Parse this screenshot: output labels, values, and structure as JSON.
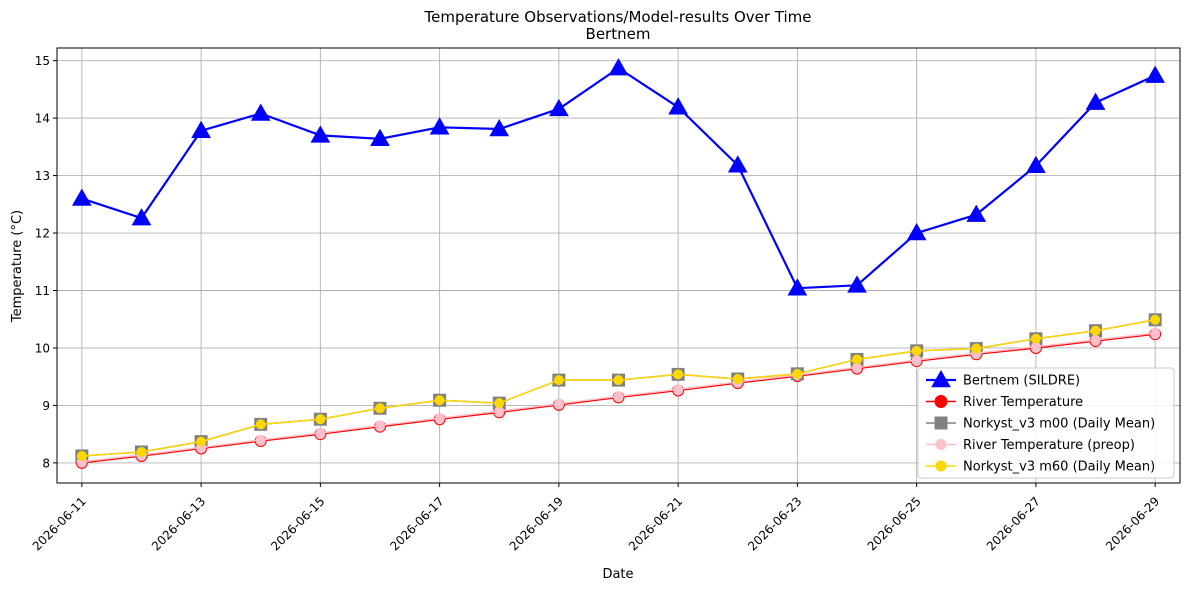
{
  "chart_data": {
    "type": "line",
    "title": "Temperature Observations/Model-results Over Time",
    "subtitle": "Bertnem",
    "xlabel": "Date",
    "ylabel": "Temperature (°C)",
    "ylim": [
      7.65,
      15.22
    ],
    "yticks": [
      8,
      9,
      10,
      11,
      12,
      13,
      14,
      15
    ],
    "xlim": [
      "2026-06-10T14:00",
      "2026-06-29T10:00"
    ],
    "xticks": [
      "2026-06-11",
      "2026-06-13",
      "2026-06-15",
      "2026-06-17",
      "2026-06-19",
      "2026-06-21",
      "2026-06-23",
      "2026-06-25",
      "2026-06-27",
      "2026-06-29"
    ],
    "grid": true,
    "legend_position": "bottom-right",
    "dates": [
      "2026-06-11",
      "2026-06-12",
      "2026-06-13",
      "2026-06-14",
      "2026-06-15",
      "2026-06-16",
      "2026-06-17",
      "2026-06-18",
      "2026-06-19",
      "2026-06-20",
      "2026-06-21",
      "2026-06-22",
      "2026-06-23",
      "2026-06-24",
      "2026-06-25",
      "2026-06-26",
      "2026-06-27",
      "2026-06-28",
      "2026-06-29"
    ],
    "series": [
      {
        "name": "Bertnem (SILDRE)",
        "color": "#0000ff",
        "marker": "triangle",
        "values": [
          12.6,
          12.26,
          13.78,
          14.08,
          13.7,
          13.64,
          13.84,
          13.81,
          14.16,
          14.87,
          14.19,
          13.18,
          11.04,
          11.09,
          12.0,
          12.32,
          13.17,
          14.27,
          14.74
        ]
      },
      {
        "name": "River Temperature",
        "color": "#ff0000",
        "marker": "circle",
        "values": [
          8.0,
          8.12,
          8.25,
          8.38,
          8.5,
          8.63,
          8.76,
          8.88,
          9.01,
          9.14,
          9.26,
          9.39,
          9.51,
          9.64,
          9.77,
          9.89,
          10.0,
          10.12,
          10.24
        ]
      },
      {
        "name": "Norkyst_v3 m00 (Daily Mean)",
        "color": "#808080",
        "marker": "square",
        "values": [
          8.12,
          8.19,
          8.37,
          8.67,
          8.76,
          8.95,
          9.09,
          9.04,
          9.44,
          9.44,
          9.54,
          9.46,
          9.55,
          9.8,
          9.95,
          9.99,
          10.16,
          10.3,
          10.49
        ]
      },
      {
        "name": "River Temperature (preop)",
        "color": "#ffc0cb",
        "marker": "circle",
        "values": [
          8.02,
          8.14,
          8.27,
          8.4,
          8.52,
          8.65,
          8.78,
          8.9,
          9.03,
          9.16,
          9.28,
          9.41,
          9.53,
          9.66,
          9.79,
          9.91,
          10.02,
          10.14,
          10.26
        ]
      },
      {
        "name": "Norkyst_v3 m60 (Daily Mean)",
        "color": "#ffd700",
        "marker": "circle",
        "values": [
          8.12,
          8.19,
          8.37,
          8.67,
          8.76,
          8.95,
          9.09,
          9.04,
          9.44,
          9.44,
          9.54,
          9.46,
          9.55,
          9.8,
          9.95,
          9.99,
          10.16,
          10.3,
          10.49
        ]
      }
    ]
  }
}
